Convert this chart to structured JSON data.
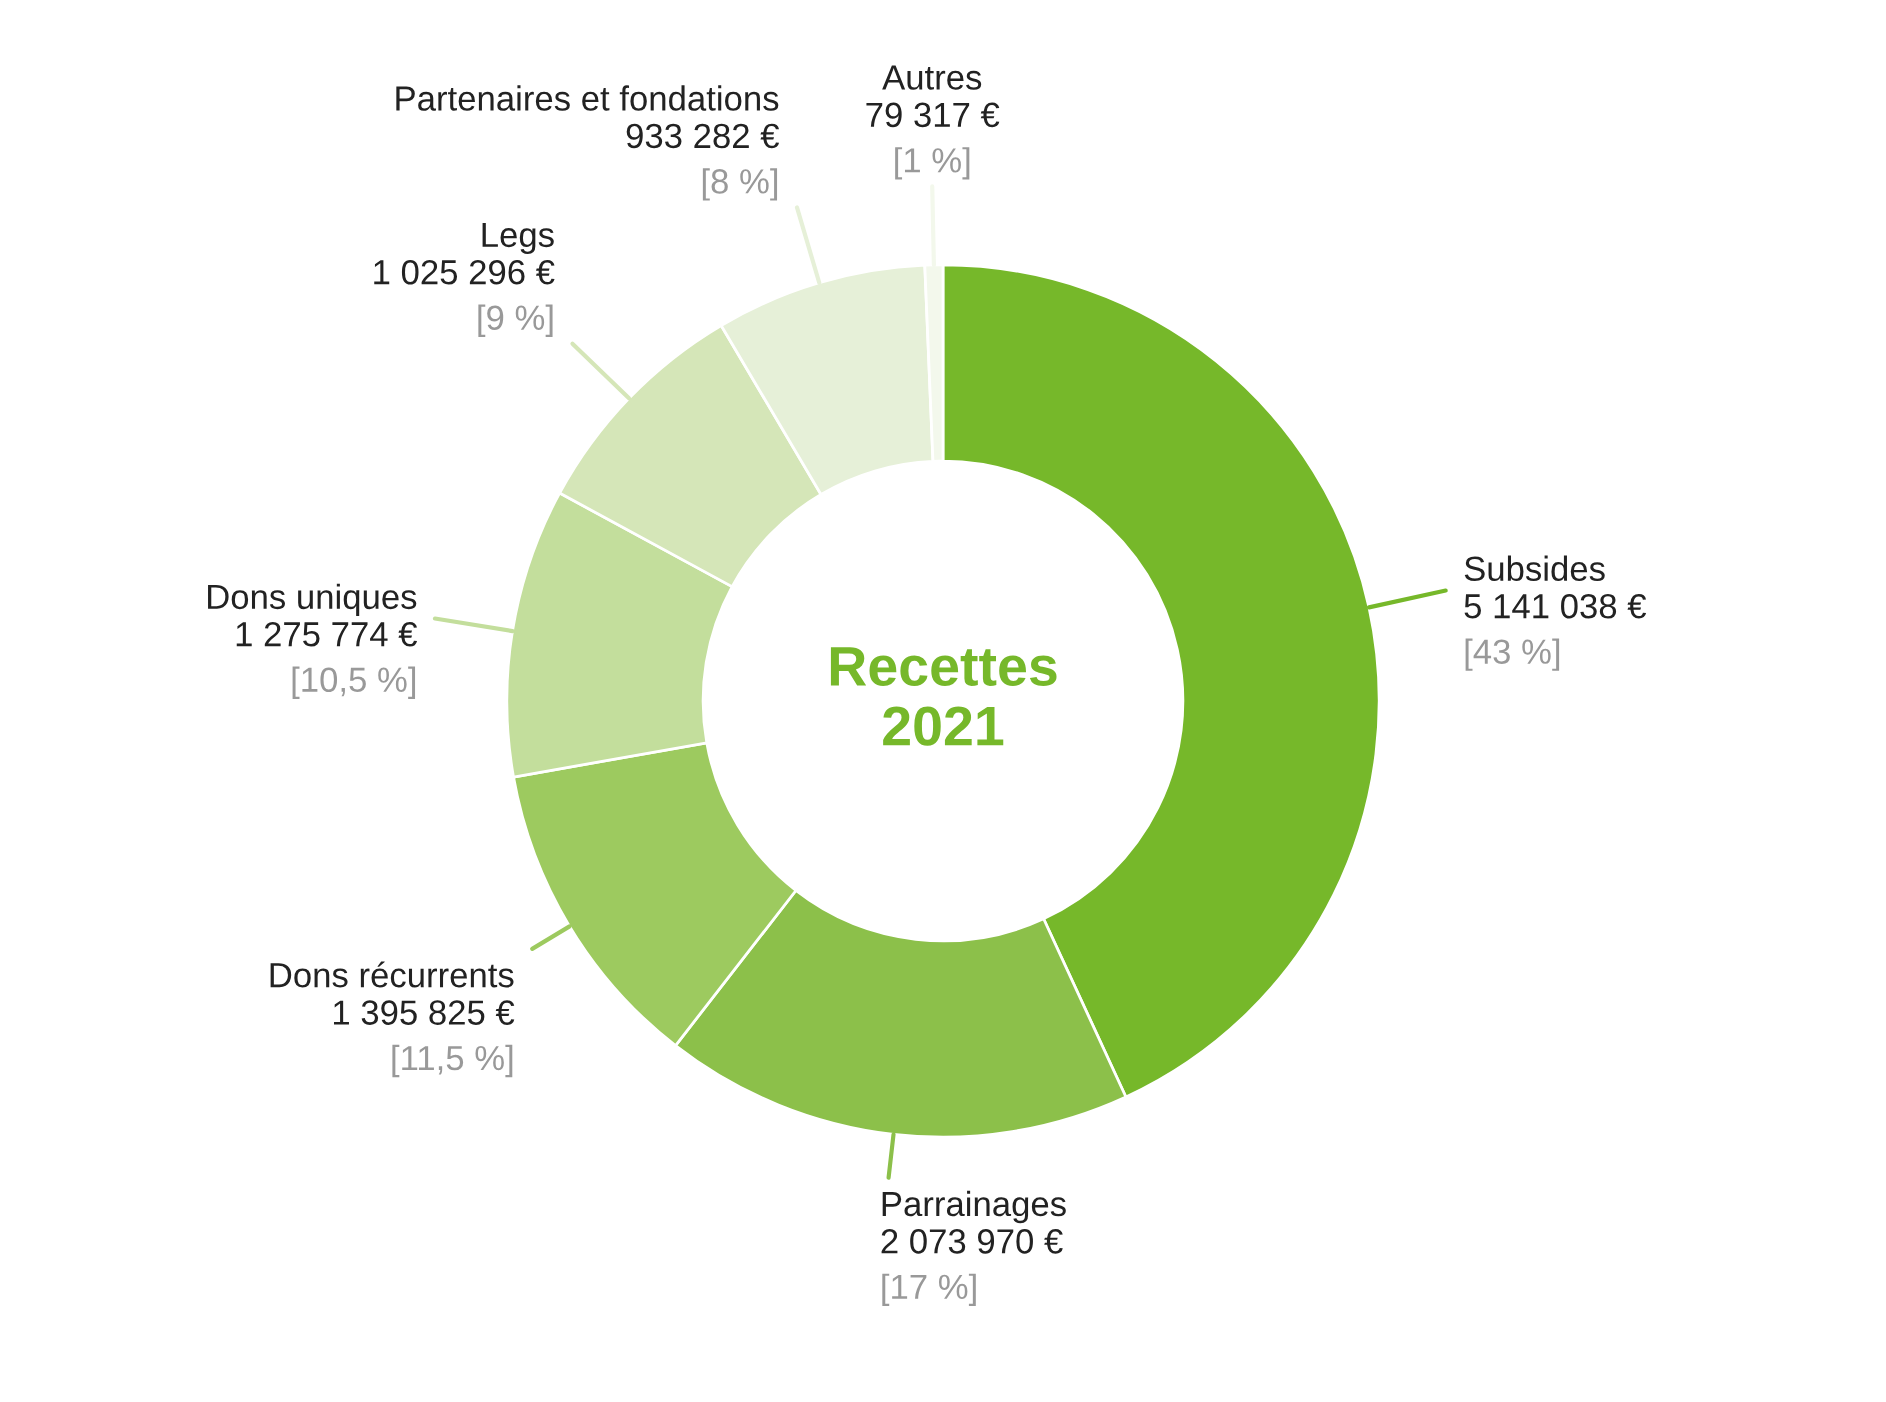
{
  "chart_data": {
    "type": "donut",
    "title": "Recettes\n2021",
    "categories": [
      "Subsides",
      "Parrainages",
      "Dons récurrents",
      "Dons uniques",
      "Legs",
      "Partenaires et fondations",
      "Autres"
    ],
    "values": [
      5141038,
      2073970,
      1395825,
      1275774,
      1025296,
      933282,
      79317
    ],
    "value_labels": [
      "5 141 038 €\n[43 %]",
      "2 073 970 €\n[17 %]",
      "1 395 825 €\n[11,5 %]",
      "1 275 774 €\n[10,5 %]",
      "1 025 296 €\n[9 %]",
      "933 282 €\n[8 %]",
      "79 317 €\n[1 %]"
    ],
    "colors": [
      "#76b82a",
      "#8cc04a",
      "#9dca5f",
      "#c3de9c",
      "#d5e6b8",
      "#e6f0d8",
      "#f3f8ec"
    ]
  }
}
